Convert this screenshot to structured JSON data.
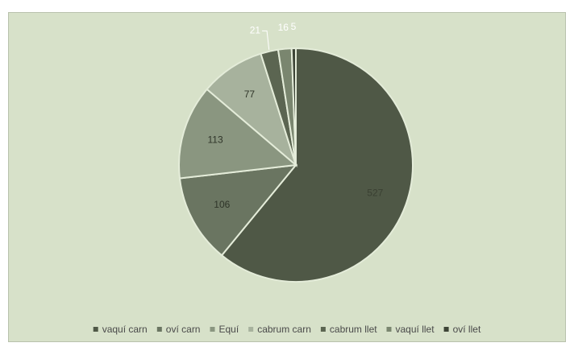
{
  "chart_data": {
    "type": "pie",
    "categories": [
      "vaquí carn",
      "oví carn",
      "Equí",
      "cabrum carn",
      "cabrum llet",
      "vaquí llet",
      "oví llet"
    ],
    "values": [
      527,
      106,
      113,
      77,
      21,
      16,
      5
    ],
    "data_labels": [
      "527",
      "106",
      "113",
      "77",
      "21",
      "16",
      "5"
    ],
    "colors": [
      "#4f5846",
      "#6a7561",
      "#8a9680",
      "#a7b29d",
      "#5b6551",
      "#7a866f",
      "#3d4436"
    ],
    "background": "#d7e1c9",
    "start_angle_deg": 0,
    "direction": "clockwise",
    "legend_position": "bottom"
  }
}
